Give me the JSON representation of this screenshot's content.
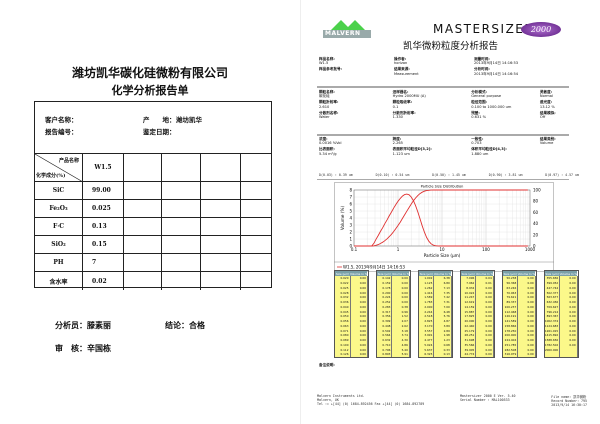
{
  "left": {
    "company": "潍坊凯华碳化硅微粉有限公司",
    "title": "化学分析报告单",
    "customer_label": "客户名称：",
    "origin_label": "产　　地：",
    "origin_value": "潍坊凯华",
    "report_no_label": "报告编号：",
    "date_label": "鉴定日期：",
    "product_label": "产品名称",
    "composition_label": "化学成分(%)",
    "product": "W1.5",
    "rows": [
      {
        "name": "SiC",
        "value": "99.00"
      },
      {
        "name": "Fe₂O₃",
        "value": "0.025"
      },
      {
        "name": "F·C",
        "value": "0.13"
      },
      {
        "name": "SiO₂",
        "value": "0.15"
      },
      {
        "name": "PH",
        "value": "7"
      },
      {
        "name": "含水率",
        "value": "0.02"
      }
    ],
    "analyst_label": "分析员：",
    "analyst": "滕素丽",
    "conclusion_label": "结论：",
    "conclusion": "合格",
    "reviewer_label": "审　核：",
    "reviewer": "辛国栋"
  },
  "right": {
    "logo_text": "MALVERN",
    "brand": "MASTERSIZER",
    "brand_badge": "2000",
    "title": "凯华微粉粒度分析报告",
    "info": [
      [
        {
          "l": "样品名称:",
          "v": "W1.5"
        },
        {
          "l": "操作者:",
          "v": "horizon"
        },
        {
          "l": "测量时间:",
          "v": "2013年9月14日 14:16:53"
        }
      ],
      [
        {
          "l": "样品参考批号:",
          "v": ""
        },
        {
          "l": "结果来源:",
          "v": "Measurement"
        },
        {
          "l": "分析时间:",
          "v": "2013年9月14日 14:16:54"
        }
      ]
    ],
    "params": [
      [
        {
          "l": "颗粒名称:",
          "v": "碳化硅"
        },
        {
          "l": "进样器名:",
          "v": "Hydro 2000MU (A)"
        },
        {
          "l": "分析模式:",
          "v": "General purpose"
        },
        {
          "l": "灵敏度:",
          "v": "Normal"
        }
      ],
      [
        {
          "l": "颗粒折射率:",
          "v": "2.610"
        },
        {
          "l": "颗粒吸收率:",
          "v": "0.1"
        },
        {
          "l": "粒径范围:",
          "v": "0.100   to   1000.000   um"
        },
        {
          "l": "遮光度:",
          "v": "13.12    %"
        }
      ],
      [
        {
          "l": "分散剂名称:",
          "v": "Water"
        },
        {
          "l": "分散剂折射率:",
          "v": "1.330"
        },
        {
          "l": "残差:",
          "v": "0.631       %"
        },
        {
          "l": "结果模拟:",
          "v": "Off"
        }
      ]
    ],
    "results": [
      [
        {
          "l": "浓度:",
          "v": "0.0016     %Vol"
        },
        {
          "l": "跨度:",
          "v": "2.265"
        },
        {
          "l": "一致性:",
          "v": "0.703"
        },
        {
          "l": "结果类别:",
          "v": "Volume"
        }
      ],
      [
        {
          "l": "比表面积:",
          "v": "5.34       m²/g"
        },
        {
          "l": "表面积平均粒径D[3,2]:",
          "v": "1.123        um"
        },
        {
          "l": "体积平均粒径D[4,3]:",
          "v": "1.880        um"
        },
        {
          "l": "",
          "v": ""
        }
      ]
    ],
    "percentiles": [
      "D(0.03) : 0.39 um",
      "D(0.10) : 0.54 um",
      "D(0.50) : 1.45 um",
      "D(0.90) : 3.81 um",
      "D(0.97) : 4.57 um"
    ],
    "notes_label": "备注说明:",
    "footer": [
      [
        "Malvern Instruments Ltd.",
        "Malvern, UK",
        "Tel := +[44] (0) 1684-892456 Fax +[44] (0) 1684-892789"
      ],
      [
        "Mastersizer 2000 E Ver. 5.40",
        "Serial Number : MAL100533"
      ],
      [
        "File name: 凯华微粉",
        "Record Number: 795",
        "2013/9/14 16:30:17"
      ]
    ],
    "table_headers": [
      "Size (µm)",
      "Volume In %"
    ]
  },
  "chart_data": {
    "type": "line",
    "title": "Particle Size Distribution",
    "xlabel": "Particle Size (µm)",
    "ylabel": "Volume (%)",
    "xscale": "log",
    "xlim": [
      0.1,
      1000
    ],
    "ylim": [
      0,
      8
    ],
    "y2lim": [
      0,
      100
    ],
    "xticks": [
      "0.1",
      "1",
      "10",
      "100",
      "1000"
    ],
    "yticks": [
      "0",
      "1",
      "2",
      "3",
      "4",
      "5",
      "6",
      "7",
      "8"
    ],
    "y2ticks": [
      "0",
      "20",
      "40",
      "60",
      "80",
      "100"
    ],
    "grid": true,
    "legend": "W1.5, 2013年9月14日 14:16:53",
    "color": "#e03030",
    "sizes": [
      0.02,
      0.022,
      0.025,
      0.028,
      0.032,
      0.036,
      0.04,
      0.045,
      0.05,
      0.056,
      0.063,
      0.071,
      0.08,
      0.089,
      0.1,
      0.112,
      0.126,
      0.142,
      0.159,
      0.178,
      0.2,
      0.224,
      0.252,
      0.283,
      0.317,
      0.356,
      0.399,
      0.448,
      0.502,
      0.564,
      0.632,
      0.71,
      0.796,
      0.893,
      1.002,
      1.125,
      1.262,
      1.416,
      1.589,
      1.783,
      2.0,
      2.244,
      2.518,
      2.825,
      3.17,
      3.557,
      3.991,
      4.477,
      5.024,
      5.637,
      6.325,
      7.096,
      7.962,
      8.934,
      10.024,
      11.247,
      12.619,
      14.159,
      15.887,
      17.825,
      20.0,
      22.44,
      25.179,
      28.251,
      31.698,
      35.566,
      39.905,
      44.774,
      50.238,
      56.368,
      63.246,
      70.963,
      79.621,
      89.337,
      100.237,
      112.468,
      126.191,
      141.589,
      158.866,
      178.25,
      200.0,
      224.404,
      251.785,
      282.508,
      316.979,
      355.656,
      399.052,
      447.744,
      502.377,
      563.677,
      632.456,
      709.627,
      796.214,
      893.367,
      1002.374,
      1124.683,
      1261.915,
      1415.892,
      1588.656,
      1782.502,
      2000.0
    ],
    "volume": [
      0,
      0,
      0,
      0,
      0,
      0,
      0,
      0,
      0,
      0,
      0,
      0,
      0,
      0,
      0,
      0,
      0,
      0,
      0,
      0,
      0,
      0,
      0,
      0.38,
      0.96,
      1.52,
      2.07,
      2.62,
      3.18,
      3.74,
      4.3,
      4.86,
      5.4,
      5.91,
      6.38,
      6.8,
      7.13,
      7.35,
      7.42,
      7.31,
      7.0,
      6.48,
      5.76,
      4.87,
      3.89,
      2.89,
      1.98,
      1.23,
      0.68,
      0.33,
      0.13,
      0.04,
      0.01,
      0,
      0,
      0,
      0,
      0,
      0,
      0,
      0,
      0,
      0,
      0,
      0,
      0,
      0,
      0,
      0,
      0,
      0,
      0,
      0,
      0,
      0,
      0,
      0,
      0,
      0,
      0,
      0,
      0,
      0,
      0,
      0,
      0,
      0,
      0,
      0,
      0,
      0,
      0,
      0,
      0,
      0,
      0,
      0,
      0,
      0,
      0,
      0
    ]
  }
}
